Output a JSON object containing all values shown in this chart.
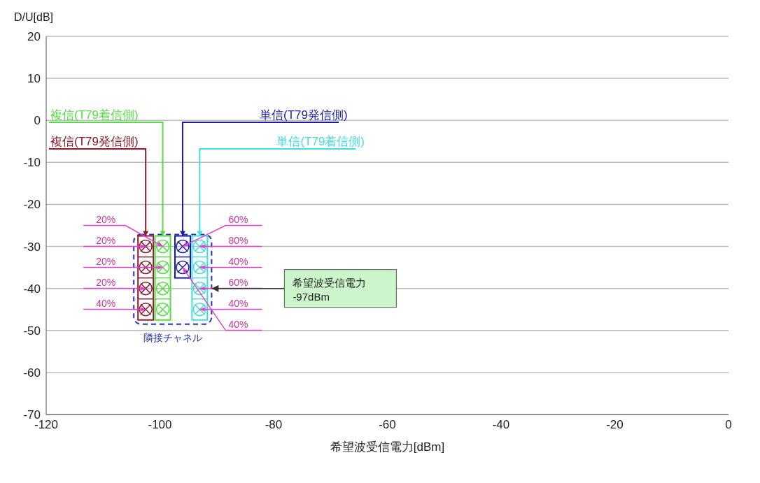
{
  "chart_data": {
    "type": "scatter",
    "ylabel": "D/U[dB]",
    "xlabel": "希望波受信電力[dBm]",
    "xlim": [
      -120,
      0
    ],
    "xticks": [
      -120,
      -100,
      -80,
      -60,
      -40,
      -20,
      0
    ],
    "ylim": [
      -70,
      20
    ],
    "yticks": [
      -70,
      -60,
      -50,
      -40,
      -30,
      -20,
      -10,
      0,
      10,
      20
    ],
    "grid": "y",
    "marker": "circle",
    "series": [
      {
        "name": "複信(T79発信側)",
        "color": "#8b1a2b",
        "x": [
          -102.5,
          -102.5,
          -102.5,
          -102.5
        ],
        "values": [
          -30,
          -35,
          -40,
          -45
        ]
      },
      {
        "name": "複信(T79着信側)",
        "color": "#55dd44",
        "x": [
          -99.5,
          -99.5,
          -99.5,
          -99.5
        ],
        "values": [
          -30,
          -35,
          -40,
          -45
        ]
      },
      {
        "name": "単信(T79発信側)",
        "color": "#1a1aaa",
        "x": [
          -96,
          -96
        ],
        "values": [
          -30,
          -35
        ]
      },
      {
        "name": "単信(T79着信側)",
        "color": "#44dddd",
        "x": [
          -93,
          -93,
          -93,
          -93
        ],
        "values": [
          -30,
          -35,
          -40,
          -45
        ]
      }
    ],
    "annotations": [
      {
        "text": "20%",
        "x": -99.5,
        "y": -30
      },
      {
        "text": "20%",
        "x": -102.5,
        "y": -30
      },
      {
        "text": "20%",
        "x": -99.5,
        "y": -35
      },
      {
        "text": "20%",
        "x": -102.5,
        "y": -40
      },
      {
        "text": "40%",
        "x": -102.5,
        "y": -45
      },
      {
        "text": "60%",
        "x": -96,
        "y": -30
      },
      {
        "text": "80%",
        "x": -93,
        "y": -30
      },
      {
        "text": "40%",
        "x": -93,
        "y": -35
      },
      {
        "text": "60%",
        "x": -93,
        "y": -40
      },
      {
        "text": "40%",
        "x": -93,
        "y": -45
      },
      {
        "text": "40%",
        "x": -96,
        "y": -35
      },
      "隣接チャネル",
      "希望波受信電力\n-97dBm"
    ]
  }
}
